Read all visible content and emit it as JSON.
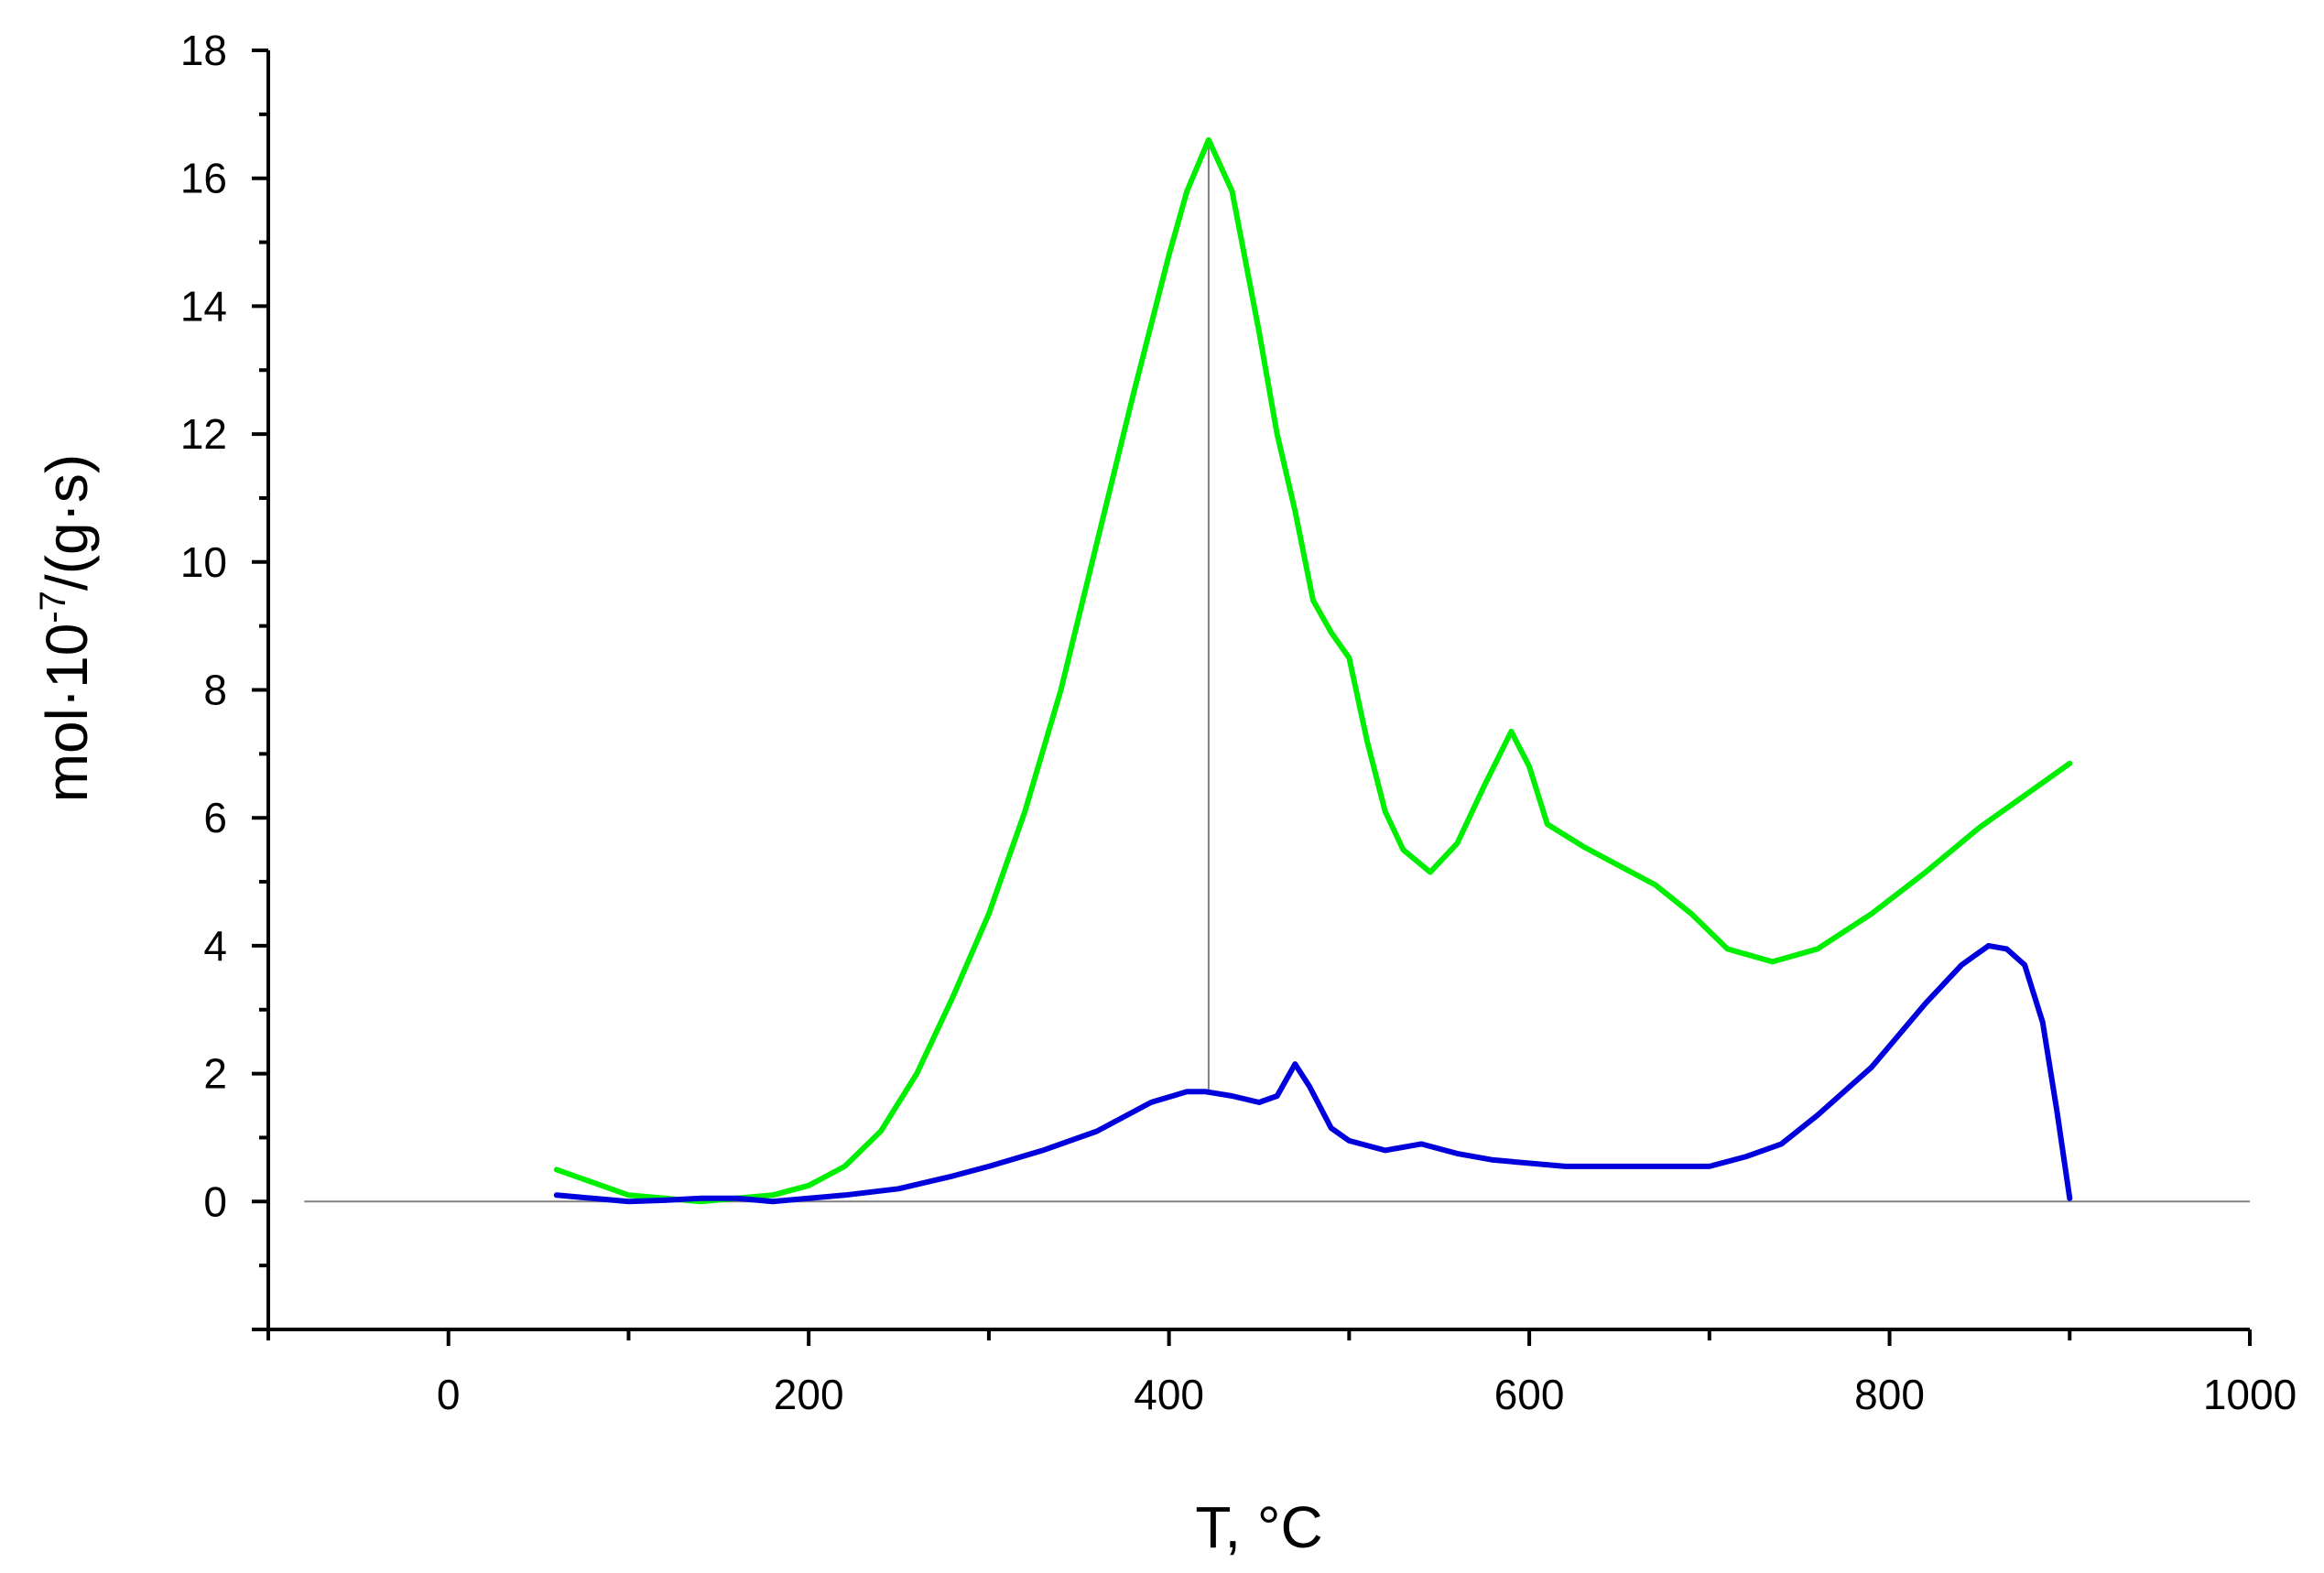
{
  "chart_data": {
    "type": "line",
    "title": "",
    "xlabel": "T, °C",
    "ylabel_main": "mol·10",
    "ylabel_exp": "-7",
    "ylabel_tail": "/(g·s)",
    "xlim": [
      -100,
      1000
    ],
    "ylim": [
      -2,
      18
    ],
    "x_ticks": [
      0,
      200,
      400,
      600,
      800,
      1000
    ],
    "y_ticks": [
      0,
      2,
      4,
      6,
      8,
      10,
      12,
      14,
      16,
      18
    ],
    "grid": false,
    "legend": "none",
    "baseline_y": 0,
    "marker_line_x": 422,
    "series": [
      {
        "color": "#00ee00",
        "x": [
          60,
          80,
          100,
          120,
          140,
          160,
          180,
          200,
          220,
          240,
          260,
          280,
          300,
          320,
          340,
          360,
          380,
          400,
          410,
          422,
          435,
          450,
          460,
          470,
          480,
          490,
          500,
          510,
          520,
          530,
          545,
          560,
          575,
          590,
          600,
          610,
          630,
          650,
          670,
          690,
          710,
          735,
          760,
          790,
          820,
          850,
          880,
          900
        ],
        "values": [
          0.5,
          0.3,
          0.1,
          0.05,
          0.0,
          0.05,
          0.1,
          0.25,
          0.55,
          1.1,
          2.0,
          3.2,
          4.5,
          6.1,
          8.0,
          10.3,
          12.6,
          14.8,
          15.8,
          16.6,
          15.8,
          13.6,
          12.0,
          10.8,
          9.4,
          8.9,
          8.5,
          7.2,
          6.1,
          5.5,
          5.15,
          5.6,
          6.5,
          7.35,
          6.8,
          5.9,
          5.55,
          5.25,
          4.95,
          4.5,
          3.95,
          3.75,
          3.95,
          4.5,
          5.15,
          5.85,
          6.45,
          6.85
        ]
      },
      {
        "color": "#0000dd",
        "x": [
          60,
          80,
          100,
          120,
          140,
          160,
          180,
          200,
          220,
          250,
          280,
          300,
          330,
          360,
          390,
          410,
          420,
          435,
          450,
          460,
          470,
          478,
          490,
          500,
          520,
          540,
          560,
          580,
          620,
          660,
          700,
          720,
          740,
          760,
          790,
          820,
          840,
          855,
          865,
          875,
          885,
          893,
          900
        ],
        "values": [
          0.1,
          0.05,
          0.0,
          0.02,
          0.05,
          0.05,
          0.0,
          0.05,
          0.1,
          0.2,
          0.4,
          0.55,
          0.8,
          1.1,
          1.55,
          1.72,
          1.72,
          1.65,
          1.55,
          1.65,
          2.15,
          1.8,
          1.15,
          0.95,
          0.8,
          0.9,
          0.75,
          0.65,
          0.55,
          0.55,
          0.55,
          0.7,
          0.9,
          1.35,
          2.1,
          3.1,
          3.7,
          4.0,
          3.95,
          3.7,
          2.8,
          1.4,
          0.05
        ]
      }
    ]
  }
}
